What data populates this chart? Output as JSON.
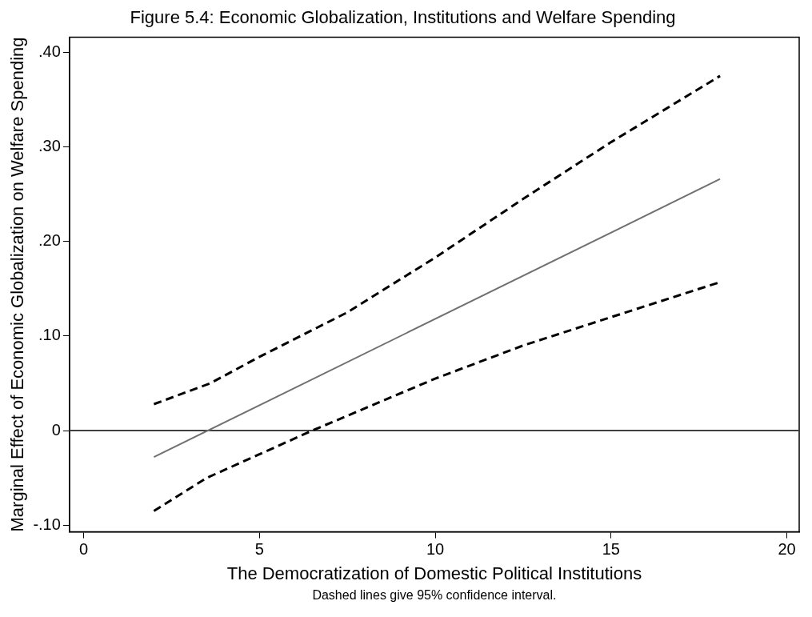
{
  "chart_data": {
    "type": "line",
    "title": "Figure 5.4: Economic Globalization, Institutions and Welfare Spending",
    "xlabel": "The Democratization of Domestic Political Institutions",
    "ylabel": "Marginal Effect of Economic Globalization on Welfare Spending",
    "annotations": [
      "Dashed lines give 95% confidence interval."
    ],
    "xlim": [
      -0.4,
      20.35
    ],
    "xticks": [
      0,
      5,
      10,
      15,
      20
    ],
    "ylim": [
      -0.107,
      0.416
    ],
    "yticks": [
      {
        "value": -0.1,
        "label": "-.10"
      },
      0,
      {
        "value": 0.1,
        "label": ".10"
      },
      {
        "value": 0.2,
        "label": ".20"
      },
      {
        "value": 0.3,
        "label": ".30"
      },
      {
        "value": 0.4,
        "label": ".40"
      }
    ],
    "grid": false,
    "legend": false,
    "marker": "none",
    "ref_lines": [
      {
        "axis": "y",
        "value": 0,
        "color": "#404040",
        "line_style": "solid"
      }
    ],
    "series": [
      {
        "color": "#707070",
        "line_style": "solid",
        "x": [
          2,
          18.1
        ],
        "values": [
          -0.028,
          0.266
        ]
      },
      {
        "color": "#000000",
        "line_style": "dashed",
        "x": [
          2,
          3.6,
          5,
          7.5,
          10,
          12.5,
          15,
          18.1
        ],
        "values": [
          0.028,
          0.05,
          0.078,
          0.125,
          0.183,
          0.245,
          0.305,
          0.375
        ]
      },
      {
        "color": "#000000",
        "line_style": "dashed",
        "x": [
          2,
          3.5,
          5,
          6.5,
          10,
          12.5,
          15,
          18.1
        ],
        "values": [
          -0.085,
          -0.05,
          -0.025,
          0,
          0.055,
          0.09,
          0.12,
          0.157
        ]
      }
    ]
  }
}
